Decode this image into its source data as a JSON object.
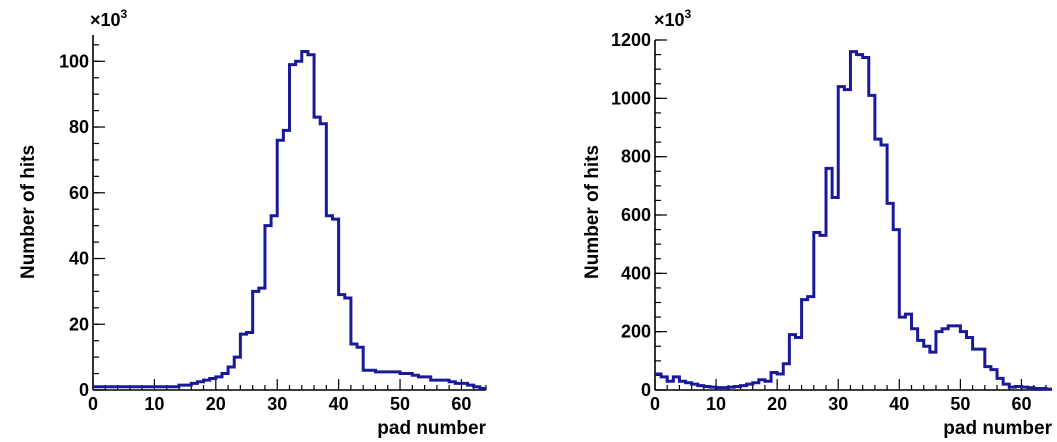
{
  "chart_data": [
    {
      "type": "histogram",
      "xlabel": "pad number",
      "ylabel": "Number of hits",
      "y_multiplier_label": "×10",
      "y_multiplier_exp": "3",
      "xlim": [
        0,
        64
      ],
      "ylim": [
        0,
        108
      ],
      "xticks": [
        0,
        10,
        20,
        30,
        40,
        50,
        60
      ],
      "yticks": [
        0,
        20,
        40,
        60,
        80,
        100
      ],
      "bin_width": 1,
      "values": [
        1,
        1,
        1,
        1,
        1,
        1,
        1,
        1,
        1,
        1,
        1,
        1,
        1,
        1,
        1.5,
        1.5,
        2,
        2.5,
        3,
        3.5,
        4,
        5,
        7,
        10,
        17,
        17.5,
        30,
        31,
        50,
        53,
        76,
        79,
        99,
        100,
        103,
        102,
        83,
        81,
        53,
        52,
        29,
        28,
        14,
        13,
        6,
        6,
        5.5,
        5.5,
        5.5,
        5.5,
        5,
        5,
        4.5,
        4,
        4,
        3,
        3,
        3,
        2.5,
        2,
        2,
        1.5,
        1,
        0.5
      ],
      "line_color": "#1a1a99",
      "grid": false
    },
    {
      "type": "histogram",
      "xlabel": "pad number",
      "ylabel": "Number of hits",
      "y_multiplier_label": "×10",
      "y_multiplier_exp": "3",
      "xlim": [
        0,
        65
      ],
      "ylim": [
        0,
        1200
      ],
      "xticks": [
        0,
        10,
        20,
        30,
        40,
        50,
        60
      ],
      "yticks": [
        0,
        200,
        400,
        600,
        800,
        1000,
        1200
      ],
      "bin_width": 1,
      "values": [
        55,
        45,
        30,
        45,
        30,
        25,
        20,
        15,
        12,
        10,
        8,
        8,
        10,
        12,
        15,
        20,
        25,
        35,
        30,
        60,
        55,
        90,
        190,
        180,
        310,
        320,
        540,
        530,
        760,
        660,
        1040,
        1030,
        1160,
        1150,
        1140,
        1010,
        860,
        840,
        640,
        550,
        250,
        260,
        210,
        170,
        150,
        130,
        200,
        210,
        220,
        220,
        200,
        180,
        140,
        140,
        80,
        70,
        40,
        20,
        10,
        12,
        10,
        8,
        5,
        5,
        3
      ],
      "line_color": "#1a1a99",
      "grid": false
    }
  ]
}
